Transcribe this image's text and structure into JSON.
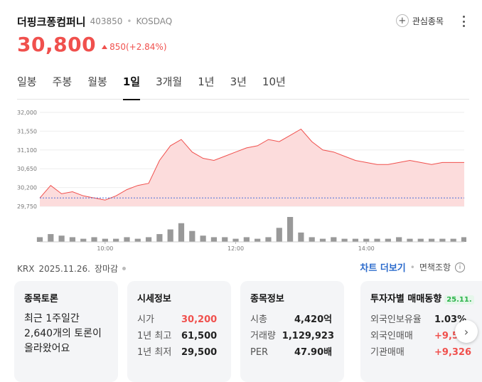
{
  "stock": {
    "name": "더핑크퐁컴퍼니",
    "code": "403850",
    "market": "KOSDAQ",
    "price": "30,800",
    "change": "850(+2.84%)",
    "fav_label": "관심종목"
  },
  "tabs": [
    {
      "label": "일봉"
    },
    {
      "label": "주봉"
    },
    {
      "label": "월봉"
    },
    {
      "label": "1일"
    },
    {
      "label": "3개월"
    },
    {
      "label": "1년"
    },
    {
      "label": "3년"
    },
    {
      "label": "10년"
    }
  ],
  "active_tab": "1일",
  "info": {
    "exchange": "KRX",
    "date": "2025.11.26.",
    "status": "장마감",
    "chart_link": "차트 더보기",
    "disclaimer": "면책조항"
  },
  "cards": {
    "discussion": {
      "title": "종목토론",
      "text": "최근 1주일간 2,640개의 토론이 올라왔어요"
    },
    "market_info": {
      "title": "시세정보",
      "rows": [
        {
          "k": "시가",
          "v": "30,200"
        },
        {
          "k": "1년 최고",
          "v": "61,500"
        },
        {
          "k": "1년 최저",
          "v": "29,500"
        }
      ]
    },
    "stock_info": {
      "title": "종목정보",
      "rows": [
        {
          "k": "시총",
          "v": "4,420억"
        },
        {
          "k": "거래량",
          "v": "1,129,923"
        },
        {
          "k": "PER",
          "v": "47.90배"
        }
      ]
    },
    "investor": {
      "title": "투자자별 매매동향",
      "badge": "25.11.",
      "rows": [
        {
          "k": "외국인보유율",
          "v": "1.03%"
        },
        {
          "k": "외국인매매",
          "v": "+9,5"
        },
        {
          "k": "기관매매",
          "v": "+9,326"
        }
      ]
    }
  },
  "colors": {
    "up": "#f0504d",
    "fill": "#fcdcdc",
    "link": "#2a6acc",
    "volume": "#999999"
  },
  "chart_data": {
    "type": "area",
    "x_ticks": [
      "10:00",
      "12:00",
      "14:00"
    ],
    "y_ticks": [
      "32,000",
      "31,550",
      "31,100",
      "30,650",
      "30,200",
      "29,750"
    ],
    "ylim": [
      29750,
      32000
    ],
    "x": [
      "09:00",
      "09:10",
      "09:20",
      "09:30",
      "09:40",
      "09:50",
      "10:00",
      "10:10",
      "10:20",
      "10:30",
      "10:40",
      "10:50",
      "11:00",
      "11:10",
      "11:20",
      "11:30",
      "11:40",
      "11:50",
      "12:00",
      "12:10",
      "12:20",
      "12:30",
      "12:40",
      "12:50",
      "13:00",
      "13:10",
      "13:20",
      "13:30",
      "13:40",
      "13:50",
      "14:00",
      "14:10",
      "14:20",
      "14:30",
      "14:40",
      "14:50",
      "15:00",
      "15:10",
      "15:20",
      "15:30"
    ],
    "series": [
      {
        "values": [
          29950,
          30250,
          30050,
          30100,
          30000,
          29950,
          29900,
          30000,
          30150,
          30250,
          30300,
          30850,
          31200,
          31350,
          31050,
          30900,
          30850,
          30950,
          31050,
          31150,
          31200,
          31350,
          31300,
          31450,
          31600,
          31300,
          31100,
          31050,
          30950,
          30850,
          30800,
          30750,
          30750,
          30800,
          30850,
          30800,
          30750,
          30800,
          30800,
          30800
        ]
      }
    ],
    "volume": [
      3,
      5,
      4,
      3,
      2,
      3,
      2,
      2,
      3,
      2,
      3,
      5,
      8,
      12,
      7,
      4,
      3,
      3,
      2,
      3,
      2,
      3,
      9,
      16,
      6,
      3,
      2,
      3,
      2,
      2,
      2,
      2,
      2,
      3,
      2,
      2,
      2,
      2,
      2,
      3
    ],
    "baseline": 29950
  }
}
